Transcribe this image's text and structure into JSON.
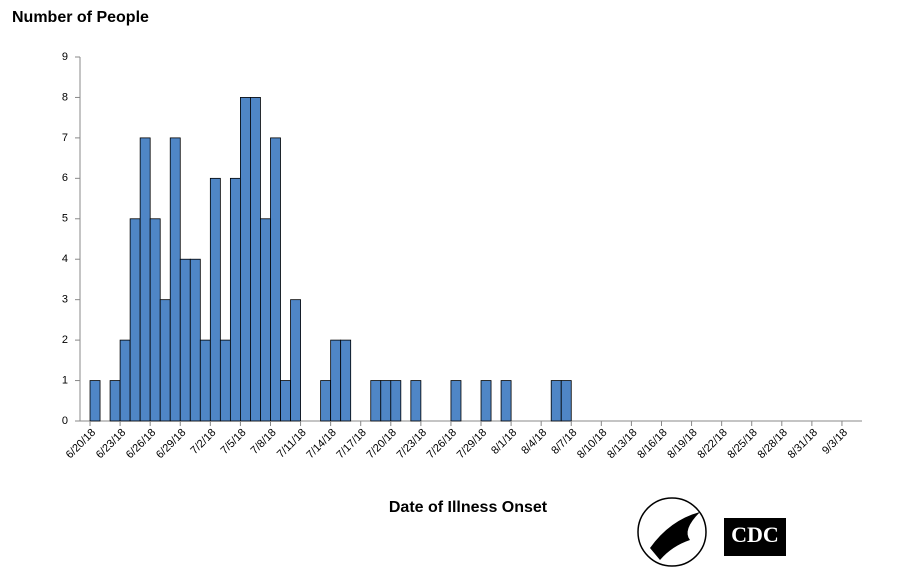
{
  "chart_data": {
    "type": "bar",
    "title": "Number of People",
    "x_label": "Date of Illness Onset",
    "categories": [
      null,
      "6/20/18",
      null,
      null,
      "6/23/18",
      null,
      null,
      "6/26/18",
      null,
      null,
      "6/29/18",
      null,
      null,
      "7/2/18",
      null,
      null,
      "7/5/18",
      null,
      null,
      "7/8/18",
      null,
      null,
      "7/11/18",
      null,
      null,
      "7/14/18",
      null,
      null,
      "7/17/18",
      null,
      null,
      "7/20/18",
      null,
      null,
      "7/23/18",
      null,
      null,
      "7/26/18",
      null,
      null,
      "7/29/18",
      null,
      null,
      "8/1/18",
      null,
      null,
      "8/4/18",
      null,
      null,
      "8/7/18",
      null,
      null,
      "8/10/18",
      null,
      null,
      "8/13/18",
      null,
      null,
      "8/16/18",
      null,
      null,
      "8/19/18",
      null,
      null,
      "8/22/18",
      null,
      null,
      "8/25/18",
      null,
      null,
      "8/28/18",
      null,
      null,
      "8/31/18",
      null,
      null,
      "9/3/18",
      null
    ],
    "values": [
      0,
      1,
      0,
      1,
      2,
      5,
      7,
      5,
      3,
      7,
      4,
      4,
      2,
      6,
      2,
      6,
      8,
      8,
      5,
      7,
      1,
      3,
      0,
      0,
      1,
      2,
      2,
      0,
      0,
      1,
      1,
      1,
      0,
      1,
      0,
      0,
      0,
      1,
      0,
      0,
      1,
      0,
      1,
      0,
      0,
      0,
      0,
      1,
      1,
      0,
      0,
      0,
      0,
      0,
      0,
      0,
      0,
      0,
      0,
      0,
      0,
      0,
      0,
      0,
      0,
      0,
      0,
      0,
      0,
      0,
      0,
      0,
      0,
      0,
      0,
      0,
      0,
      0
    ],
    "color": "#4f86c6",
    "ylim": [
      0,
      9
    ],
    "yticks": [
      0,
      1,
      2,
      3,
      4,
      5,
      6,
      7,
      8,
      9
    ],
    "logo_text": "CDC"
  }
}
